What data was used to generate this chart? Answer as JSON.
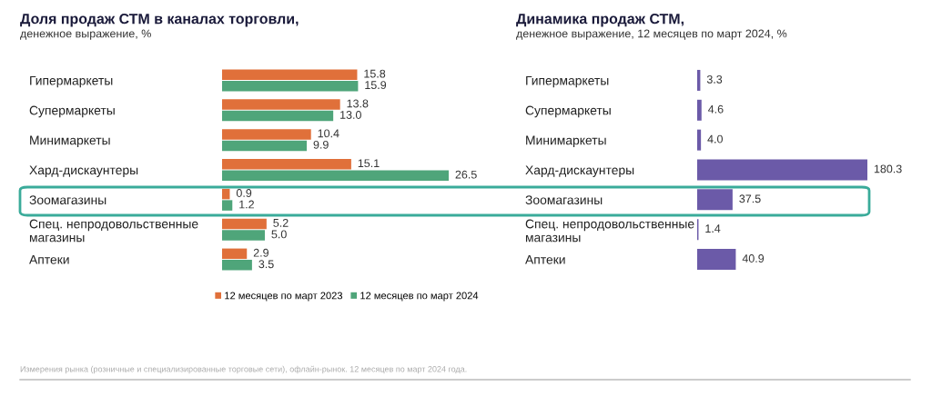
{
  "chart_data": [
    {
      "type": "bar",
      "orientation": "horizontal",
      "title": "Доля продаж СТМ в каналах торговли,",
      "subtitle": "денежное выражение, %",
      "categories": [
        "Гипермаркеты",
        "Супермаркеты",
        "Минимаркеты",
        "Хард-дискаунтеры",
        "Зоомагазины",
        "Спец. непродовольственные магазины",
        "Аптеки"
      ],
      "series": [
        {
          "name": "12 месяцев по март 2023",
          "color": "#e0703a",
          "values": [
            15.8,
            13.8,
            10.4,
            15.1,
            0.9,
            5.2,
            2.9
          ],
          "value_labels": [
            "15.8",
            "13.8",
            "10.4",
            "15.1",
            "0.9",
            "5.2",
            "2.9"
          ]
        },
        {
          "name": "12 месяцев по март 2024",
          "color": "#4fa57a",
          "values": [
            15.9,
            13.0,
            9.9,
            26.5,
            1.2,
            5.0,
            3.5
          ],
          "value_labels": [
            "15.9",
            "13.0",
            "9.9",
            "26.5",
            "1.2",
            "5.0",
            "3.5"
          ]
        }
      ],
      "legend": "bottom",
      "tick_labels": "y",
      "grid": false,
      "annotations": [
        "Измерения рынка (розничные и специализированные торговые сети), офлайн-рынок. 12 месяцев по март 2024 года."
      ]
    },
    {
      "type": "bar",
      "orientation": "horizontal",
      "title": "Динамика продаж СТМ,",
      "subtitle": "денежное выражение, 12 месяцев по март 2024, %",
      "categories": [
        "Гипермаркеты",
        "Супермаркеты",
        "Минимаркеты",
        "Хард-дискаунтеры",
        "Зоомагазины",
        "Спец. непродовольственные магазины",
        "Аптеки"
      ],
      "series": [
        {
          "color": "#6b5aa8",
          "values": [
            3.3,
            4.6,
            4.0,
            180.3,
            37.5,
            1.4,
            40.9
          ],
          "value_labels": [
            "3.3",
            "4.6",
            "4.0",
            "180.3",
            "37.5",
            "1.4",
            "40.9"
          ]
        }
      ],
      "legend": false,
      "tick_labels": "y",
      "grid": false
    }
  ]
}
